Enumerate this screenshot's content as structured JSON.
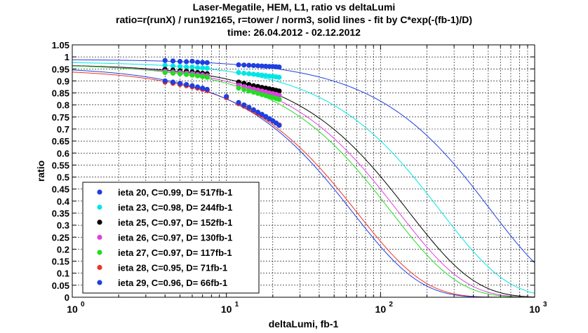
{
  "title": {
    "line1": "Laser-Megatile, HEM, L1, ratio vs deltaLumi",
    "line2": "ratio=r(runX) / run192165, r=tower / norm3, solid lines - fit by C*exp(-(fb-1)/D)",
    "line3": "time: 26.04.2012 - 02.12.2012"
  },
  "chart_data": {
    "type": "scatter",
    "xlabel": "deltaLumi, fb-1",
    "ylabel": "ratio",
    "xscale": "log",
    "xlim": [
      1,
      1000
    ],
    "ylim": [
      0,
      1.05
    ],
    "grid": true,
    "legend_position": "bottom-left",
    "x_tick_labels": [
      "10",
      "10",
      "10",
      "10"
    ],
    "x_tick_exponents": [
      "0",
      "1",
      "2",
      "3"
    ],
    "y_tick_labels": [
      "0",
      "0.05",
      "0.1",
      "0.15",
      "0.2",
      "0.25",
      "0.3",
      "0.35",
      "0.4",
      "0.45",
      "0.5",
      "0.55",
      "0.6",
      "0.65",
      "0.7",
      "0.75",
      "0.8",
      "0.85",
      "0.9",
      "0.95",
      "1",
      "1.05"
    ],
    "series": [
      {
        "name": "ieta 20, C=0.99, D= 517fb-1",
        "color": "#1f3fe0",
        "C": 0.99,
        "D": 517,
        "x": [
          4,
          4.5,
          5,
          5.5,
          6,
          6.5,
          7,
          7.5,
          12,
          13,
          14,
          15,
          16,
          17,
          18,
          19,
          20,
          21,
          22
        ],
        "y": [
          0.985,
          0.983,
          0.981,
          0.98,
          0.982,
          0.978,
          0.977,
          0.976,
          0.967,
          0.966,
          0.965,
          0.964,
          0.963,
          0.962,
          0.961,
          0.96,
          0.96,
          0.959,
          0.958
        ]
      },
      {
        "name": "ieta 23, C=0.98, D= 244fb-1",
        "color": "#00e5e5",
        "C": 0.98,
        "D": 244,
        "x": [
          4,
          4.5,
          5,
          5.5,
          6,
          6.5,
          7,
          7.5,
          12,
          13,
          14,
          15,
          16,
          17,
          18,
          19,
          20,
          21,
          22
        ],
        "y": [
          0.965,
          0.962,
          0.96,
          0.958,
          0.958,
          0.955,
          0.954,
          0.953,
          0.935,
          0.932,
          0.93,
          0.928,
          0.926,
          0.924,
          0.922,
          0.92,
          0.919,
          0.917,
          0.915
        ]
      },
      {
        "name": "ieta 25, C=0.97, D= 152fb-1",
        "color": "#000000",
        "C": 0.97,
        "D": 152,
        "x": [
          4,
          4.5,
          5,
          5.5,
          6,
          6.5,
          7,
          7.5,
          12,
          13,
          14,
          15,
          16,
          17,
          18,
          19,
          20,
          21,
          22
        ],
        "y": [
          0.948,
          0.945,
          0.942,
          0.94,
          0.938,
          0.935,
          0.932,
          0.93,
          0.895,
          0.89,
          0.885,
          0.88,
          0.877,
          0.873,
          0.87,
          0.867,
          0.864,
          0.861,
          0.858
        ]
      },
      {
        "name": "ieta 26, C=0.97, D= 130fb-1",
        "color": "#e040e0",
        "C": 0.97,
        "D": 130,
        "x": [
          4,
          4.5,
          5,
          5.5,
          6,
          6.5,
          7,
          7.5,
          12,
          13,
          14,
          15,
          16,
          17,
          18,
          19,
          20,
          21,
          22
        ],
        "y": [
          0.94,
          0.937,
          0.935,
          0.932,
          0.93,
          0.927,
          0.925,
          0.922,
          0.882,
          0.876,
          0.871,
          0.866,
          0.862,
          0.858,
          0.854,
          0.85,
          0.847,
          0.844,
          0.84
        ]
      },
      {
        "name": "ieta 27, C=0.97, D= 117fb-1",
        "color": "#22dd22",
        "C": 0.97,
        "D": 117,
        "x": [
          4,
          4.5,
          5,
          5.5,
          6,
          6.5,
          7,
          7.5,
          12,
          13,
          14,
          15,
          16,
          17,
          18,
          19,
          20,
          21,
          22
        ],
        "y": [
          0.935,
          0.932,
          0.93,
          0.927,
          0.924,
          0.921,
          0.918,
          0.915,
          0.87,
          0.864,
          0.858,
          0.853,
          0.848,
          0.843,
          0.839,
          0.835,
          0.831,
          0.827,
          0.823
        ]
      },
      {
        "name": "ieta 28, C=0.95, D=  71fb-1",
        "color": "#ee3322",
        "C": 0.95,
        "D": 71,
        "x": [
          4,
          4.5,
          5,
          5.5,
          6,
          6.5,
          7,
          7.5,
          10,
          12,
          13,
          14,
          15,
          16,
          17,
          18,
          19,
          20,
          21,
          22
        ],
        "y": [
          0.895,
          0.89,
          0.885,
          0.88,
          0.875,
          0.87,
          0.865,
          0.86,
          0.83,
          0.805,
          0.795,
          0.785,
          0.775,
          0.765,
          0.757,
          0.749,
          0.741,
          0.733,
          0.725,
          0.717
        ]
      },
      {
        "name": "ieta 29, C=0.96, D=  66fb-1",
        "color": "#1f3fe0",
        "C": 0.96,
        "D": 66,
        "x": [
          4,
          4.5,
          5,
          5.5,
          6,
          6.5,
          7,
          7.5,
          10,
          12,
          13,
          14,
          15,
          16,
          17,
          18,
          19,
          20,
          21,
          22
        ],
        "y": [
          0.9,
          0.895,
          0.89,
          0.885,
          0.88,
          0.875,
          0.87,
          0.865,
          0.835,
          0.81,
          0.8,
          0.79,
          0.78,
          0.77,
          0.761,
          0.752,
          0.743,
          0.734,
          0.725,
          0.715
        ]
      }
    ]
  }
}
